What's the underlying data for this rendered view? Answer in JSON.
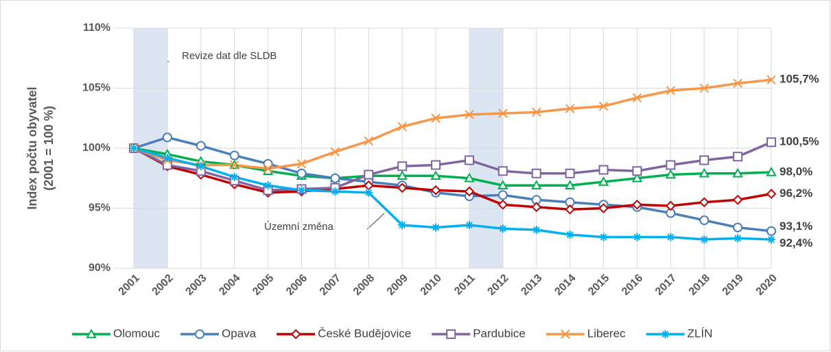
{
  "chart_data": {
    "type": "line",
    "ylabel": [
      "Index počtu obyvatel",
      "(2001 = 100 %)"
    ],
    "x": [
      2001,
      2002,
      2003,
      2004,
      2005,
      2006,
      2007,
      2008,
      2009,
      2010,
      2011,
      2012,
      2013,
      2014,
      2015,
      2016,
      2017,
      2018,
      2019,
      2020
    ],
    "xlim": [
      2001,
      2020
    ],
    "xticks": [
      2001,
      2002,
      2003,
      2004,
      2005,
      2006,
      2007,
      2008,
      2009,
      2010,
      2011,
      2012,
      2013,
      2014,
      2015,
      2016,
      2017,
      2018,
      2019,
      2020
    ],
    "ylim": [
      90,
      110
    ],
    "yticks": [
      {
        "value": 90,
        "label": "90%"
      },
      {
        "value": 95,
        "label": "95%"
      },
      {
        "value": 100,
        "label": "100%"
      },
      {
        "value": 105,
        "label": "105%"
      },
      {
        "value": 110,
        "label": "110%"
      }
    ],
    "grid": true,
    "legend": "bottom",
    "shaded_spans": [
      [
        2001,
        2002
      ],
      [
        2011,
        2012
      ]
    ],
    "annotations": [
      "Revize dat dle SLDB",
      "Územní změna"
    ],
    "series": [
      {
        "name": "Olomouc",
        "color": "#00b050",
        "marker": "triangle",
        "values": [
          100,
          99.5,
          98.9,
          98.6,
          98.1,
          97.7,
          97.5,
          97.7,
          97.7,
          97.7,
          97.5,
          96.9,
          96.9,
          96.9,
          97.2,
          97.5,
          97.8,
          97.9,
          97.9,
          98.0
        ],
        "value_labels": [
          null,
          null,
          null,
          null,
          null,
          null,
          null,
          null,
          null,
          null,
          null,
          null,
          null,
          null,
          null,
          null,
          null,
          null,
          null,
          "98,0%"
        ]
      },
      {
        "name": "Opava",
        "color": "#4a7ebb",
        "marker": "circle",
        "values": [
          100,
          100.9,
          100.2,
          99.4,
          98.7,
          97.9,
          97.5,
          97.2,
          96.9,
          96.3,
          96.0,
          96.1,
          95.7,
          95.5,
          95.3,
          95.1,
          94.6,
          94.0,
          93.4,
          93.1
        ],
        "value_labels": [
          null,
          null,
          null,
          null,
          null,
          null,
          null,
          null,
          null,
          null,
          null,
          null,
          null,
          null,
          null,
          null,
          null,
          null,
          null,
          "93,1%"
        ]
      },
      {
        "name": "České Budějovice",
        "color": "#c00000",
        "marker": "diamond",
        "values": [
          100,
          98.5,
          97.8,
          97.0,
          96.3,
          96.4,
          96.6,
          96.9,
          96.7,
          96.5,
          96.4,
          95.3,
          95.1,
          94.9,
          95.0,
          95.3,
          95.2,
          95.5,
          95.7,
          96.2
        ],
        "value_labels": [
          null,
          null,
          null,
          null,
          null,
          null,
          null,
          null,
          null,
          null,
          null,
          null,
          null,
          null,
          null,
          null,
          null,
          null,
          null,
          "96,2%"
        ]
      },
      {
        "name": "Pardubice",
        "color": "#8064a2",
        "marker": "square",
        "values": [
          100,
          98.6,
          98.1,
          97.3,
          96.5,
          96.6,
          96.7,
          97.8,
          98.5,
          98.6,
          99.0,
          98.1,
          97.9,
          97.9,
          98.2,
          98.1,
          98.6,
          99.0,
          99.3,
          100.5
        ],
        "value_labels": [
          null,
          null,
          null,
          null,
          null,
          null,
          null,
          null,
          null,
          null,
          null,
          null,
          null,
          null,
          null,
          null,
          null,
          null,
          null,
          "100,5%"
        ]
      },
      {
        "name": "Liberec",
        "color": "#f79646",
        "marker": "x",
        "values": [
          100,
          99.0,
          98.6,
          98.6,
          98.3,
          98.7,
          99.7,
          100.6,
          101.8,
          102.5,
          102.8,
          102.9,
          103.0,
          103.3,
          103.5,
          104.2,
          104.8,
          105.0,
          105.4,
          105.7
        ],
        "value_labels": [
          null,
          null,
          null,
          null,
          null,
          null,
          null,
          null,
          null,
          null,
          null,
          null,
          null,
          null,
          null,
          null,
          null,
          null,
          null,
          "105,7%"
        ]
      },
      {
        "name": "ZLÍN",
        "color": "#00b0f0",
        "marker": "star",
        "values": [
          100,
          99.2,
          98.5,
          97.6,
          96.9,
          96.5,
          96.4,
          96.3,
          93.6,
          93.4,
          93.6,
          93.3,
          93.2,
          92.8,
          92.6,
          92.6,
          92.6,
          92.4,
          92.5,
          92.4
        ],
        "value_labels": [
          null,
          null,
          null,
          null,
          null,
          null,
          null,
          null,
          null,
          null,
          null,
          null,
          null,
          null,
          null,
          null,
          null,
          null,
          null,
          "92,4%"
        ]
      }
    ]
  }
}
